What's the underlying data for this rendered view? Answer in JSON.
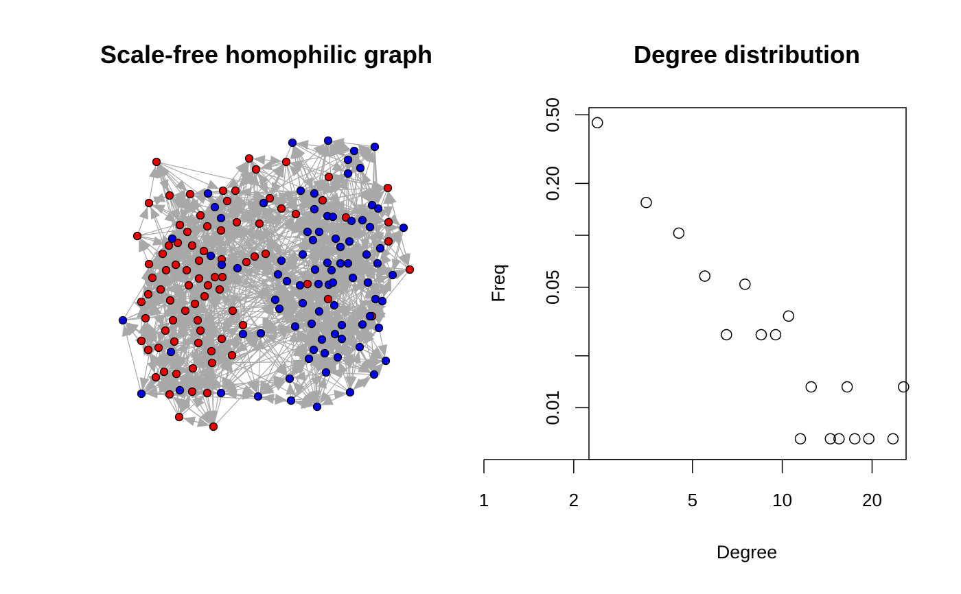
{
  "chart_data": [
    {
      "type": "network",
      "title": "Scale-free homophilic graph",
      "colors": {
        "group_a": "#e60000",
        "group_b": "#0000e6",
        "edge": "#a8a8a8",
        "node_outline": "#000000"
      },
      "nodes_group_a": [
        [
          228,
          236
        ],
        [
          363,
          231
        ],
        [
          373,
          247
        ],
        [
          417,
          236
        ],
        [
          479,
          258
        ],
        [
          565,
          274
        ],
        [
          247,
          285
        ],
        [
          277,
          283
        ],
        [
          325,
          278
        ],
        [
          343,
          278
        ],
        [
          331,
          293
        ],
        [
          393,
          289
        ],
        [
          410,
          304
        ],
        [
          217,
          296
        ],
        [
          292,
          314
        ],
        [
          345,
          324
        ],
        [
          302,
          330
        ],
        [
          322,
          336
        ],
        [
          378,
          326
        ],
        [
          431,
          312
        ],
        [
          470,
          292
        ],
        [
          504,
          317
        ],
        [
          566,
          324
        ],
        [
          262,
          328
        ],
        [
          273,
          338
        ],
        [
          200,
          344
        ],
        [
          259,
          354
        ],
        [
          280,
          358
        ],
        [
          297,
          366
        ],
        [
          246,
          358
        ],
        [
          237,
          370
        ],
        [
          359,
          382
        ],
        [
          371,
          374
        ],
        [
          387,
          370
        ],
        [
          217,
          385
        ],
        [
          256,
          386
        ],
        [
          272,
          394
        ],
        [
          290,
          380
        ],
        [
          323,
          378
        ],
        [
          242,
          394
        ],
        [
          222,
          405
        ],
        [
          290,
          406
        ],
        [
          313,
          404
        ],
        [
          324,
          404
        ],
        [
          275,
          416
        ],
        [
          303,
          416
        ],
        [
          320,
          422
        ],
        [
          234,
          422
        ],
        [
          216,
          429
        ],
        [
          298,
          432
        ],
        [
          206,
          440
        ],
        [
          248,
          438
        ],
        [
          284,
          443
        ],
        [
          270,
          453
        ],
        [
          339,
          453
        ],
        [
          212,
          464
        ],
        [
          252,
          467
        ],
        [
          288,
          467
        ],
        [
          354,
          474
        ],
        [
          241,
          482
        ],
        [
          292,
          482
        ],
        [
          206,
          497
        ],
        [
          254,
          498
        ],
        [
          323,
          494
        ],
        [
          289,
          500
        ],
        [
          216,
          510
        ],
        [
          231,
          507
        ],
        [
          308,
          512
        ],
        [
          338,
          518
        ],
        [
          309,
          529
        ],
        [
          239,
          542
        ],
        [
          227,
          550
        ],
        [
          257,
          545
        ],
        [
          281,
          537
        ],
        [
          247,
          575
        ],
        [
          280,
          571
        ],
        [
          302,
          573
        ],
        [
          261,
          608
        ],
        [
          311,
          622
        ],
        [
          448,
          414
        ],
        [
          478,
          436
        ],
        [
          542,
          461
        ],
        [
          566,
          352
        ],
        [
          597,
          393
        ]
      ],
      "nodes_group_b": [
        [
          426,
          208
        ],
        [
          478,
          205
        ],
        [
          516,
          220
        ],
        [
          546,
          214
        ],
        [
          507,
          233
        ],
        [
          525,
          245
        ],
        [
          507,
          253
        ],
        [
          303,
          282
        ],
        [
          313,
          302
        ],
        [
          384,
          296
        ],
        [
          438,
          278
        ],
        [
          458,
          282
        ],
        [
          458,
          305
        ],
        [
          477,
          315
        ],
        [
          485,
          316
        ],
        [
          322,
          318
        ],
        [
          448,
          338
        ],
        [
          465,
          338
        ],
        [
          456,
          350
        ],
        [
          489,
          348
        ],
        [
          512,
          322
        ],
        [
          528,
          321
        ],
        [
          539,
          331
        ],
        [
          588,
          332
        ],
        [
          542,
          299
        ],
        [
          551,
          304
        ],
        [
          251,
          348
        ],
        [
          307,
          373
        ],
        [
          323,
          386
        ],
        [
          346,
          391
        ],
        [
          441,
          371
        ],
        [
          410,
          380
        ],
        [
          496,
          360
        ],
        [
          509,
          352
        ],
        [
          554,
          362
        ],
        [
          534,
          371
        ],
        [
          477,
          383
        ],
        [
          496,
          384
        ],
        [
          507,
          384
        ],
        [
          550,
          384
        ],
        [
          572,
          401
        ],
        [
          405,
          400
        ],
        [
          418,
          410
        ],
        [
          483,
          394
        ],
        [
          459,
          393
        ],
        [
          437,
          416
        ],
        [
          464,
          414
        ],
        [
          479,
          415
        ],
        [
          485,
          412
        ],
        [
          514,
          405
        ],
        [
          536,
          412
        ],
        [
          401,
          437
        ],
        [
          407,
          450
        ],
        [
          441,
          442
        ],
        [
          487,
          445
        ],
        [
          547,
          436
        ],
        [
          557,
          439
        ],
        [
          465,
          454
        ],
        [
          430,
          476
        ],
        [
          454,
          472
        ],
        [
          498,
          474
        ],
        [
          528,
          473
        ],
        [
          552,
          478
        ],
        [
          354,
          487
        ],
        [
          488,
          487
        ],
        [
          380,
          486
        ],
        [
          498,
          494
        ],
        [
          469,
          495
        ],
        [
          179,
          467
        ],
        [
          249,
          513
        ],
        [
          524,
          506
        ],
        [
          457,
          510
        ],
        [
          473,
          515
        ],
        [
          450,
          523
        ],
        [
          492,
          521
        ],
        [
          562,
          526
        ],
        [
          475,
          543
        ],
        [
          545,
          546
        ],
        [
          422,
          552
        ],
        [
          206,
          574
        ],
        [
          262,
          569
        ],
        [
          322,
          573
        ],
        [
          376,
          578
        ],
        [
          424,
          584
        ],
        [
          462,
          593
        ],
        [
          510,
          572
        ],
        [
          539,
          461
        ]
      ]
    },
    {
      "type": "scatter",
      "title": "Degree distribution",
      "xlabel": "Degree",
      "ylabel": "Freq",
      "log_x": true,
      "log_y": true,
      "x_ticks": [
        1,
        2,
        5,
        10,
        20
      ],
      "y_ticks": [
        "0.50",
        "0.20",
        "0.05",
        "0.01"
      ],
      "y_minor_ticks": [
        0.1,
        0.02
      ],
      "xlim": [
        1,
        26
      ],
      "ylim": [
        0.005,
        0.55
      ],
      "x": [
        2.4,
        3.5,
        4.5,
        5.5,
        6.5,
        7.5,
        8.5,
        9.5,
        10.5,
        11.5,
        12.5,
        14.5,
        15.5,
        16.5,
        17.5,
        19.5,
        23.5,
        25.5
      ],
      "y": [
        0.45,
        0.155,
        0.103,
        0.058,
        0.0265,
        0.052,
        0.0265,
        0.0265,
        0.034,
        0.0066,
        0.0132,
        0.0066,
        0.0066,
        0.0132,
        0.0066,
        0.0066,
        0.0066,
        0.0132
      ]
    }
  ]
}
